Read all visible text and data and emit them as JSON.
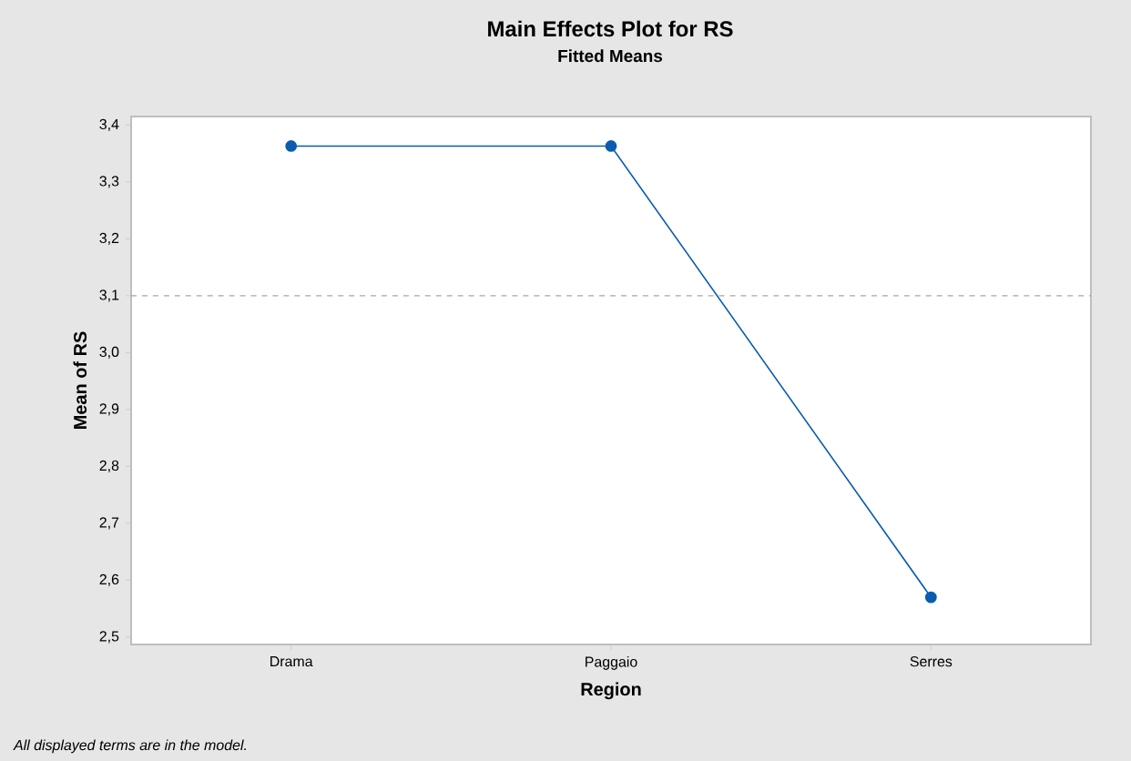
{
  "chart_data": {
    "type": "line",
    "title": "Main Effects Plot for RS",
    "subtitle": "Fitted Means",
    "xlabel": "Region",
    "ylabel": "Mean of RS",
    "categories": [
      "Drama",
      "Paggaio",
      "Serres"
    ],
    "series": [
      {
        "color": "#0b5cad",
        "values": [
          3.363,
          3.363,
          2.57
        ]
      }
    ],
    "ylim": [
      2.487,
      3.415
    ],
    "yticks": [
      {
        "value": 2.5,
        "label": "2,5"
      },
      {
        "value": 2.6,
        "label": "2,6"
      },
      {
        "value": 2.7,
        "label": "2,7"
      },
      {
        "value": 2.8,
        "label": "2,8"
      },
      {
        "value": 2.9,
        "label": "2,9"
      },
      {
        "value": 3.0,
        "label": "3,0"
      },
      {
        "value": 3.1,
        "label": "3,1"
      },
      {
        "value": 3.2,
        "label": "3,2"
      },
      {
        "value": 3.3,
        "label": "3,3"
      },
      {
        "value": 3.4,
        "label": "3,4"
      }
    ],
    "ref_lines": [
      {
        "axis": "y",
        "value": 3.1,
        "color": "#a6a6a6",
        "line_style": "dashed"
      }
    ],
    "marker": "circle",
    "line_style": "solid",
    "annotations": [
      "All displayed terms are in the model."
    ]
  }
}
